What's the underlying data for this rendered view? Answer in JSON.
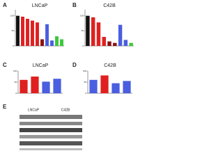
{
  "chart_data": [
    {
      "type": "bar",
      "panel": "A",
      "title": "LNCaP",
      "ylim": [
        0,
        120
      ],
      "yticks": [
        0,
        50,
        100
      ],
      "values": [
        100,
        97,
        90,
        84,
        78,
        22,
        72,
        18,
        32,
        22
      ],
      "colors": [
        "#111111",
        "#e02020",
        "#e02020",
        "#e02020",
        "#e02020",
        "#8b1010",
        "#4a5ee0",
        "#4a5ee0",
        "#3cc83c",
        "#3cc83c"
      ]
    },
    {
      "type": "bar",
      "panel": "B",
      "title": "C42B",
      "ylim": [
        0,
        120
      ],
      "yticks": [
        0,
        50,
        100
      ],
      "values": [
        100,
        95,
        78,
        30,
        15,
        10,
        70,
        20,
        10
      ],
      "colors": [
        "#111111",
        "#e02020",
        "#e02020",
        "#e02020",
        "#8b1010",
        "#8b1010",
        "#4a5ee0",
        "#4a5ee0",
        "#3cc83c"
      ]
    },
    {
      "type": "bar",
      "panel": "C",
      "title": "LNCaP",
      "ylim": [
        0,
        100
      ],
      "yticks": [
        0,
        50,
        100
      ],
      "values": [
        60,
        75,
        52,
        65
      ],
      "colors": [
        "#e02020",
        "#e02020",
        "#4a5ee0",
        "#4a5ee0"
      ]
    },
    {
      "type": "bar",
      "panel": "D",
      "title": "C42B",
      "ylim": [
        0,
        100
      ],
      "yticks": [
        0,
        50,
        100
      ],
      "values": [
        60,
        80,
        45,
        55
      ],
      "colors": [
        "#4a5ee0",
        "#e02020",
        "#4a5ee0",
        "#4a5ee0"
      ]
    }
  ],
  "blot": {
    "panel": "E",
    "lanes": [
      "LNCaP",
      "C42B"
    ]
  }
}
